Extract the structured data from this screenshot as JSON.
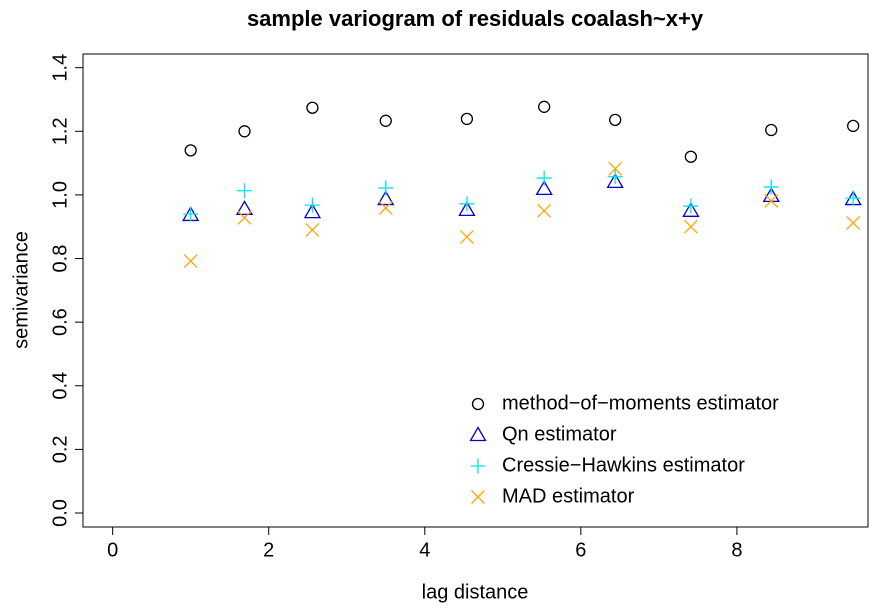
{
  "chart_data": {
    "type": "scatter",
    "title": "sample variogram of residuals coalash~x+y",
    "x_label": "lag distance",
    "y_label": "semivariance",
    "xlim": [
      -0.38,
      9.68
    ],
    "xticks": [
      0,
      2,
      4,
      6,
      8
    ],
    "ylim": [
      -0.044,
      1.443
    ],
    "yticks": [
      {
        "value": 0,
        "label": "0.0"
      },
      0.2,
      0.4,
      0.6,
      0.8,
      {
        "value": 1,
        "label": "1.0"
      },
      1.2,
      1.4
    ],
    "legend": "bottom-right",
    "x": [
      1.0,
      1.69,
      2.56,
      3.5,
      4.54,
      5.53,
      6.44,
      7.41,
      8.44,
      9.49
    ],
    "series": [
      {
        "name": "method−of−moments estimator",
        "color": "#000000",
        "marker": "circle",
        "values": [
          1.14,
          1.2,
          1.274,
          1.233,
          1.239,
          1.277,
          1.236,
          1.12,
          1.204,
          1.217
        ]
      },
      {
        "name": "Qn estimator",
        "color": "#0000cd",
        "marker": "triangle",
        "values": [
          0.937,
          0.956,
          0.946,
          0.987,
          0.953,
          1.019,
          1.041,
          0.95,
          0.997,
          0.987
        ]
      },
      {
        "name": "Cressie−Hawkins estimator",
        "color": "#00e5ee",
        "marker": "plus",
        "values": [
          0.94,
          1.013,
          0.968,
          1.022,
          0.972,
          1.053,
          1.057,
          0.965,
          1.025,
          0.99
        ]
      },
      {
        "name": "MAD estimator",
        "color": "#ffa500",
        "marker": "cross",
        "values": [
          0.792,
          0.928,
          0.89,
          0.959,
          0.868,
          0.95,
          1.082,
          0.9,
          0.981,
          0.912
        ]
      }
    ]
  }
}
